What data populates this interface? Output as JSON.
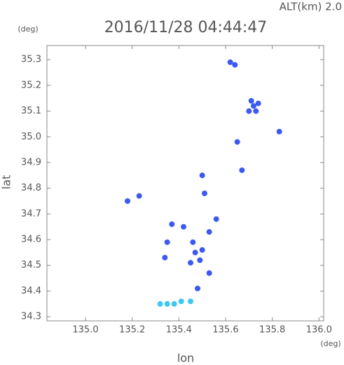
{
  "chart_data": {
    "type": "scatter",
    "altitude": "ALT(km)  2.0",
    "title": "2016/11/28 04:44:47",
    "y_unit": "(deg)",
    "x_unit": "(deg)",
    "x_label": "lon",
    "y_label": "lat",
    "xlim": [
      134.835,
      136.02
    ],
    "ylim": [
      34.284,
      35.355
    ],
    "xticks": [
      {
        "value": 135,
        "label": "135.0"
      },
      135.2,
      135.4,
      135.6,
      135.8,
      {
        "value": 136,
        "label": "136.0"
      }
    ],
    "yticks": [
      34.3,
      34.4,
      34.5,
      34.6,
      34.7,
      34.8,
      34.9,
      {
        "value": 35,
        "label": "35.0"
      },
      35.1,
      35.2,
      35.3
    ],
    "series": [
      {
        "color": "#3c5af2",
        "x": [
          135.62,
          135.64,
          135.72,
          135.71,
          135.73,
          135.7,
          135.74,
          135.83,
          135.65,
          135.67,
          135.5,
          135.51,
          135.18,
          135.23,
          135.56,
          135.42,
          135.37,
          135.53,
          135.46,
          135.47,
          135.45,
          135.49,
          135.5,
          135.35,
          135.34,
          135.53,
          135.48
        ],
        "values": [
          35.29,
          35.28,
          35.12,
          35.14,
          35.1,
          35.1,
          35.13,
          35.02,
          34.98,
          34.87,
          34.85,
          34.78,
          34.75,
          34.77,
          34.68,
          34.65,
          34.66,
          34.63,
          34.59,
          34.55,
          34.51,
          34.52,
          34.56,
          34.59,
          34.53,
          34.47,
          34.41
        ]
      },
      {
        "color": "#3ec8f0",
        "x": [
          135.32,
          135.35,
          135.38,
          135.41,
          135.45
        ],
        "values": [
          34.35,
          34.35,
          34.35,
          34.36,
          34.36
        ]
      }
    ]
  }
}
